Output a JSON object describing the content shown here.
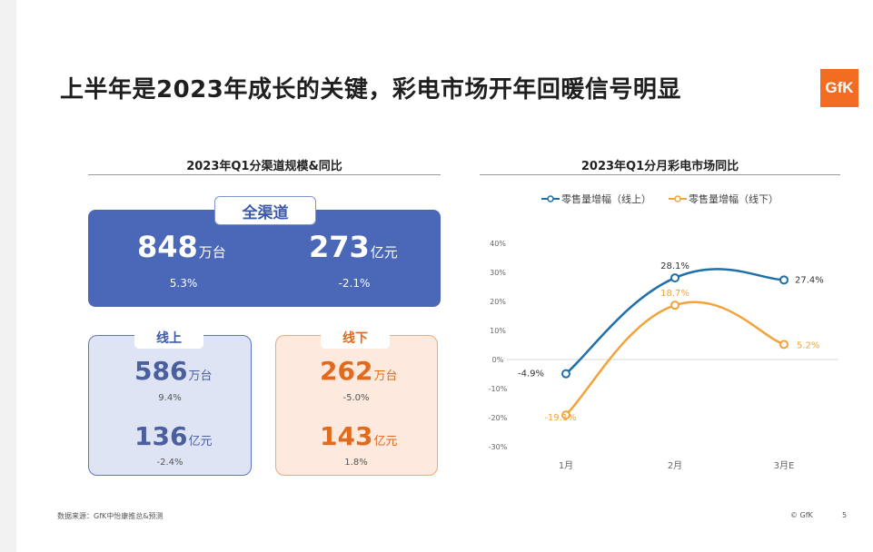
{
  "title": "上半年是2023年成长的关键，彩电市场开年回暖信号明显",
  "logo_text": "GfK",
  "left_panel": {
    "title": "2023年Q1分渠道规模&同比",
    "all": {
      "label": "全渠道",
      "vol_num": "848",
      "vol_unit": "万台",
      "vol_growth": "5.3%",
      "amt_num": "273",
      "amt_unit": "亿元",
      "amt_growth": "-2.1%"
    },
    "online": {
      "label": "线上",
      "vol_num": "586",
      "vol_unit": "万台",
      "vol_growth": "9.4%",
      "amt_num": "136",
      "amt_unit": "亿元",
      "amt_growth": "-2.4%"
    },
    "offline": {
      "label": "线下",
      "vol_num": "262",
      "vol_unit": "万台",
      "vol_growth": "-5.0%",
      "amt_num": "143",
      "amt_unit": "亿元",
      "amt_growth": "1.8%"
    }
  },
  "colors": {
    "all_bg": "#4a67b8",
    "online": "#1f6fa8",
    "offline": "#f2a33a",
    "offline_text": "#e06a1e",
    "online_text": "#4a5f9e"
  },
  "chart_data": {
    "type": "line",
    "title": "2023年Q1分月彩电市场同比",
    "categories": [
      "1月",
      "2月",
      "3月E"
    ],
    "series": [
      {
        "name": "零售量增幅（线上）",
        "values": [
          -4.9,
          28.1,
          27.4
        ],
        "labels": [
          "-4.9%",
          "28.1%",
          "27.4%"
        ],
        "color": "#1f6fa8"
      },
      {
        "name": "零售量增幅（线下）",
        "values": [
          -19.1,
          18.7,
          5.2
        ],
        "labels": [
          "-19.1%",
          "18.7%",
          "5.2%"
        ],
        "color": "#f2a33a"
      }
    ],
    "ylim": [
      -30,
      40
    ],
    "yticks": [
      -30,
      -20,
      -10,
      0,
      10,
      20,
      30,
      40
    ],
    "ytick_labels": [
      "-30%",
      "-20%",
      "-10%",
      "0%",
      "10%",
      "20%",
      "30%",
      "40%"
    ],
    "smooth": true,
    "grid": false,
    "legend": "top"
  },
  "footer": {
    "source": "数据来源：GfK中怡康推总&预测",
    "copyright": "© GfK",
    "page": "5"
  }
}
